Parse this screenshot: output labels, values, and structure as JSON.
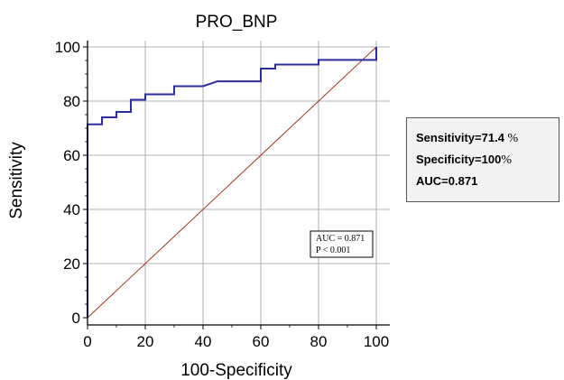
{
  "chart_data": {
    "type": "line",
    "title": "PRO_BNP",
    "xlabel": "100-Specificity",
    "ylabel": "Sensitivity",
    "xlim": [
      0,
      100
    ],
    "ylim": [
      0,
      100
    ],
    "xticks": [
      "0",
      "20",
      "40",
      "60",
      "80",
      "100"
    ],
    "yticks": [
      "0",
      "20",
      "40",
      "60",
      "80",
      "100"
    ],
    "grid": true,
    "colors": {
      "roc": "#2e2e9a",
      "reference": "#a0341e",
      "grid": "#9a9a9a"
    },
    "series": [
      {
        "x": [
          0,
          0,
          5,
          5,
          10,
          10,
          15,
          15,
          20,
          20,
          30,
          30,
          40,
          45,
          60,
          60,
          65,
          65,
          80,
          80,
          100,
          100
        ],
        "y": [
          0,
          71.4,
          71.4,
          74,
          74,
          76,
          76,
          80.5,
          80.5,
          82.5,
          82.5,
          85.5,
          85.5,
          87.3,
          87.3,
          92,
          92,
          93.5,
          93.5,
          95.2,
          95.2,
          100
        ]
      },
      {
        "x": [
          0,
          100
        ],
        "y": [
          0,
          100
        ]
      }
    ],
    "legend": {
      "placement": "lower-right",
      "lines": [
        "AUC = 0.871",
        "P < 0.001"
      ]
    }
  },
  "stats_box": {
    "sensitivity_label": "Sensitivity=",
    "sensitivity_value": "71.4",
    "sensitivity_unit": " %",
    "specificity_label": "Specificity=",
    "specificity_value": "100",
    "specificity_unit": "%",
    "auc_label": "AUC=",
    "auc_value": "0.871"
  }
}
